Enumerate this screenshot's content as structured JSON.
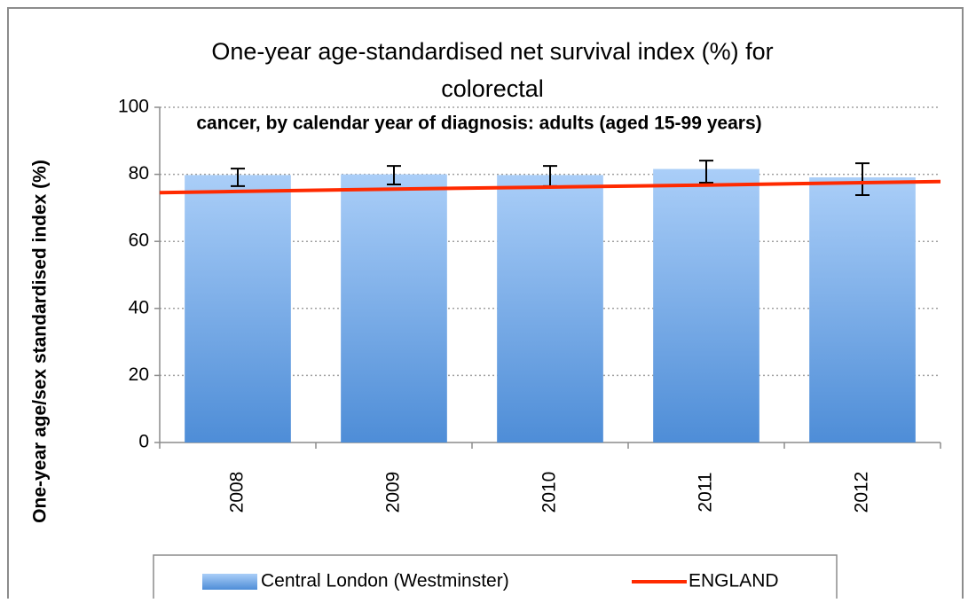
{
  "chart_data": {
    "type": "bar",
    "title": [
      "One-year age-standardised net survival index (%) for",
      "colorectal"
    ],
    "subtitle": "cancer, by calendar year of diagnosis: adults (aged 15-99 years)",
    "y_label": "One-year age/sex standardised index (%)",
    "categories": [
      "2008",
      "2009",
      "2010",
      "2011",
      "2012"
    ],
    "ylim": [
      0,
      100
    ],
    "yticks": [
      0,
      20,
      40,
      60,
      80,
      100
    ],
    "grid": true,
    "series": [
      {
        "name": "Central London (Westminster)",
        "type": "bar",
        "color": "#6fa6e6",
        "values": [
          79.8,
          80.0,
          79.8,
          81.6,
          79.1
        ],
        "lower": [
          76.5,
          77.0,
          76.5,
          77.5,
          73.8
        ],
        "upper": [
          81.7,
          82.5,
          82.5,
          84.1,
          83.3
        ]
      },
      {
        "name": "ENGLAND",
        "type": "line",
        "color": "#ff2a00",
        "values": [
          74.9,
          75.6,
          76.2,
          76.8,
          77.5
        ]
      }
    ]
  }
}
